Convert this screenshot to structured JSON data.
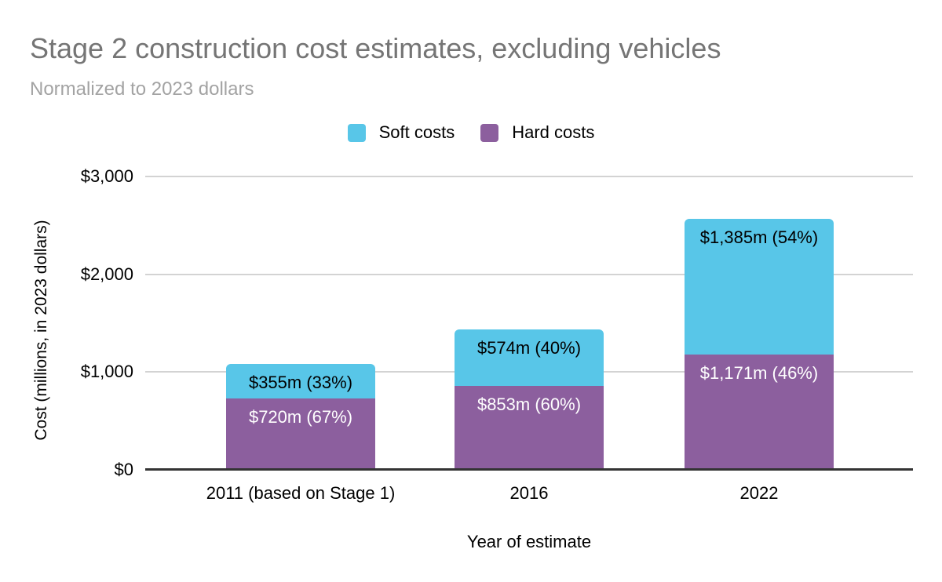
{
  "colors": {
    "background": "#ffffff",
    "title_text": "#757575",
    "subtitle_text": "#a3a3a3",
    "gridline": "#d3d3d3",
    "axis_line": "#333333",
    "tick_text": "#000000",
    "soft_costs": "#58c6e8",
    "hard_costs": "#8c5f9e"
  },
  "chart_data": {
    "type": "bar",
    "stacked": true,
    "title": "Stage 2 construction cost estimates, excluding vehicles",
    "subtitle": "Normalized to 2023 dollars",
    "xlabel": "Year of estimate",
    "ylabel": "Cost (millions, in 2023 dollars)",
    "categories": [
      "2011 (based on Stage 1)",
      "2016",
      "2022"
    ],
    "series": [
      {
        "name": "Hard costs",
        "color": "#8c5f9e",
        "text_color": "#ffffff",
        "values": [
          720,
          853,
          1171
        ],
        "data_labels": [
          "$720m (67%)",
          "$853m (60%)",
          "$1,171m (46%)"
        ]
      },
      {
        "name": "Soft costs",
        "color": "#58c6e8",
        "text_color": "#000000",
        "values": [
          355,
          574,
          1385
        ],
        "data_labels": [
          "$355m (33%)",
          "$574m (40%)",
          "$1,385m (54%)"
        ]
      }
    ],
    "legend": {
      "position": "top",
      "entries": [
        {
          "name": "Soft costs",
          "color": "#58c6e8"
        },
        {
          "name": "Hard costs",
          "color": "#8c5f9e"
        }
      ]
    },
    "y_axis": {
      "min": 0,
      "max": 3000,
      "grid": true,
      "ticks": [
        {
          "value": 0,
          "label": "$0"
        },
        {
          "value": 1000,
          "label": "$1,000"
        },
        {
          "value": 2000,
          "label": "$2,000"
        },
        {
          "value": 3000,
          "label": "$3,000"
        }
      ]
    }
  }
}
